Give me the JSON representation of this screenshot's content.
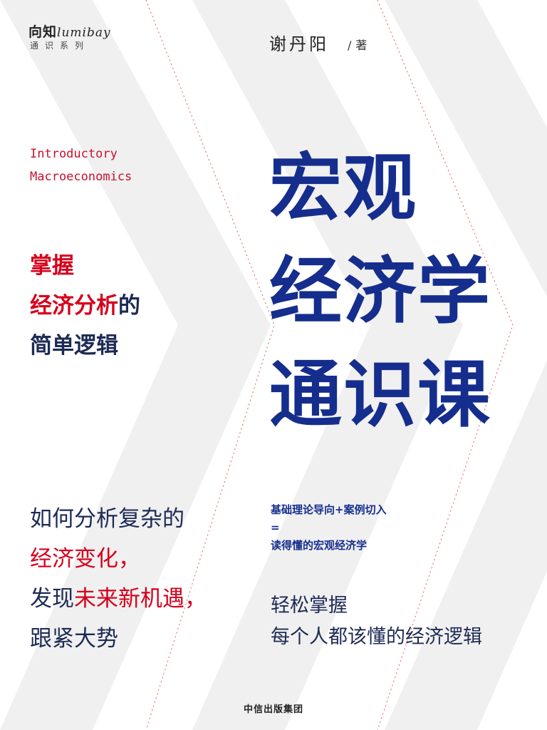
{
  "logo": {
    "brand_cn": "向知",
    "brand_en": "lumibay",
    "series": "通识系列"
  },
  "author": {
    "name": "谢丹阳",
    "role": "著",
    "separator": "/"
  },
  "english_title": {
    "line1": "Introductory",
    "line2": "Macroeconomics"
  },
  "slogan": {
    "line1": "掌握",
    "line2_red": "经济分析",
    "line2_rest": "的",
    "line3": "简单逻辑"
  },
  "main_title": {
    "line1": "宏观",
    "line2": "经济学",
    "line3": "通识课"
  },
  "lower_left": {
    "line1": "如何分析复杂的",
    "line2_red": "经济变化，",
    "line3_pre": "发现",
    "line3_red": "未来新机遇，",
    "line4": "跟紧大势"
  },
  "method": {
    "line1": "基础理论导向+案例切入",
    "equals": "=",
    "line3": "读得懂的宏观经济学"
  },
  "tagline": {
    "line1": "轻松掌握",
    "line2": "每个人都该懂的经济逻辑"
  },
  "publisher": "中信出版集团",
  "colors": {
    "title_blue": "#152e8d",
    "accent_red": "#d6001c",
    "text_navy": "#1d2a55",
    "chevron_gray": "#f0f0f0"
  }
}
